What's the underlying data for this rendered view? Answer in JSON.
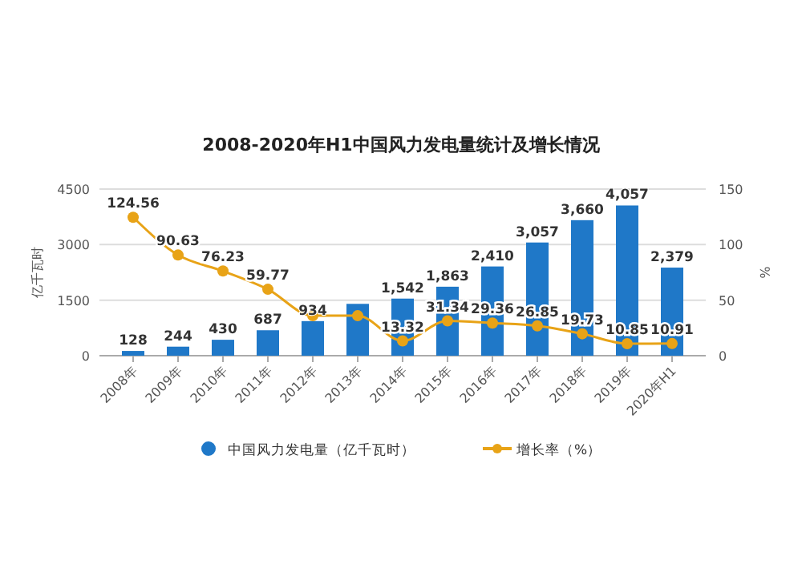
{
  "chart_data": {
    "type": "bar",
    "title": "2008-2020年H1中国风力发电量统计及增长情况",
    "categories": [
      "2008年",
      "2009年",
      "2010年",
      "2011年",
      "2012年",
      "2013年",
      "2014年",
      "2015年",
      "2016年",
      "2017年",
      "2018年",
      "2019年",
      "2020年H1"
    ],
    "series": [
      {
        "name": "中国风力发电量（亿千瓦时）",
        "color": "#1f78c8",
        "values": [
          128,
          244,
          430,
          687,
          934,
          1400,
          1542,
          1863,
          2410,
          3057,
          3660,
          4057,
          2379
        ],
        "value_labels": [
          "128",
          "244",
          "430",
          "687",
          "934",
          null,
          "1,542",
          "1,863",
          "2,410",
          "3,057",
          "3,660",
          "4,057",
          "2,379"
        ]
      },
      {
        "name": "增长率（%）",
        "type": "line",
        "axis": "y2",
        "color": "#e8a317",
        "values": [
          124.56,
          90.63,
          76.23,
          59.77,
          36,
          36,
          13.32,
          31.34,
          29.36,
          26.85,
          19.73,
          10.85,
          10.91
        ],
        "value_labels": [
          "124.56",
          "90.63",
          "76.23",
          "59.77",
          null,
          null,
          "13.32",
          "31.34",
          "29.36",
          "26.85",
          "19.73",
          "10.85",
          "10.91"
        ]
      }
    ],
    "ylabel": "亿千瓦时",
    "y2label": "%",
    "ylim": [
      0,
      4500
    ],
    "yticks": [
      0,
      1500,
      3000,
      4500
    ],
    "y2lim": [
      0,
      150
    ],
    "y2ticks": [
      0,
      50,
      100,
      150
    ],
    "grid": "y",
    "legend": "bottom",
    "marker": "circle"
  }
}
